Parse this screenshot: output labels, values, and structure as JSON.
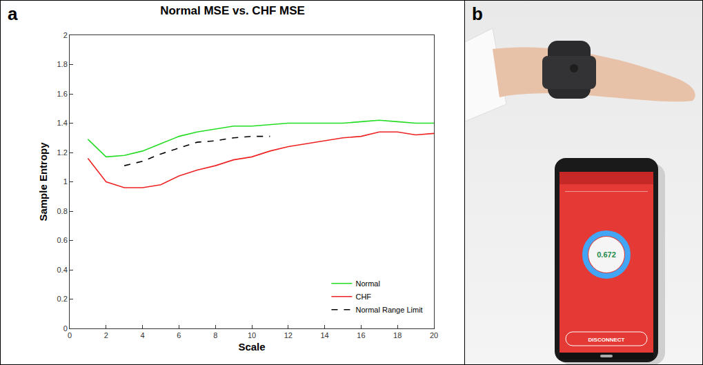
{
  "panels": [
    "a",
    "b"
  ],
  "chart_data": {
    "type": "line",
    "title": "Normal MSE vs. CHF MSE",
    "x_label": "Scale",
    "y_label": "Sample Entropy",
    "x": [
      1,
      2,
      3,
      4,
      5,
      6,
      7,
      8,
      9,
      10,
      11,
      12,
      13,
      14,
      15,
      16,
      17,
      18,
      19,
      20
    ],
    "series": [
      {
        "name": "Normal",
        "color": "#22dd22",
        "line_style": "solid",
        "values": [
          1.29,
          1.17,
          1.18,
          1.21,
          1.26,
          1.31,
          1.34,
          1.36,
          1.38,
          1.38,
          1.39,
          1.4,
          1.4,
          1.4,
          1.4,
          1.41,
          1.42,
          1.41,
          1.4,
          1.4
        ]
      },
      {
        "name": "CHF",
        "color": "#ee2222",
        "line_style": "solid",
        "values": [
          1.16,
          1.0,
          0.96,
          0.96,
          0.98,
          1.04,
          1.08,
          1.11,
          1.15,
          1.17,
          1.21,
          1.24,
          1.26,
          1.28,
          1.3,
          1.31,
          1.34,
          1.34,
          1.32,
          1.33
        ]
      },
      {
        "name": "Normal Range Limit",
        "color": "#000000",
        "line_style": "dash",
        "values": [
          null,
          null,
          1.11,
          1.14,
          1.19,
          1.23,
          1.27,
          1.28,
          1.3,
          1.31,
          1.31,
          null,
          null,
          null,
          null,
          null,
          null,
          null,
          null,
          null
        ]
      }
    ],
    "xlim": [
      0,
      20
    ],
    "xticks": [
      0,
      2,
      4,
      6,
      8,
      10,
      12,
      14,
      16,
      18,
      20
    ],
    "ylim": [
      0,
      2
    ],
    "yticks": [
      0,
      0.2,
      0.4,
      0.6,
      0.8,
      1,
      1.2,
      1.4,
      1.6,
      1.8,
      2
    ],
    "grid": false,
    "legend": "lower right"
  },
  "image": {
    "screen_value": "0.672",
    "button": "DISCONNECT"
  }
}
